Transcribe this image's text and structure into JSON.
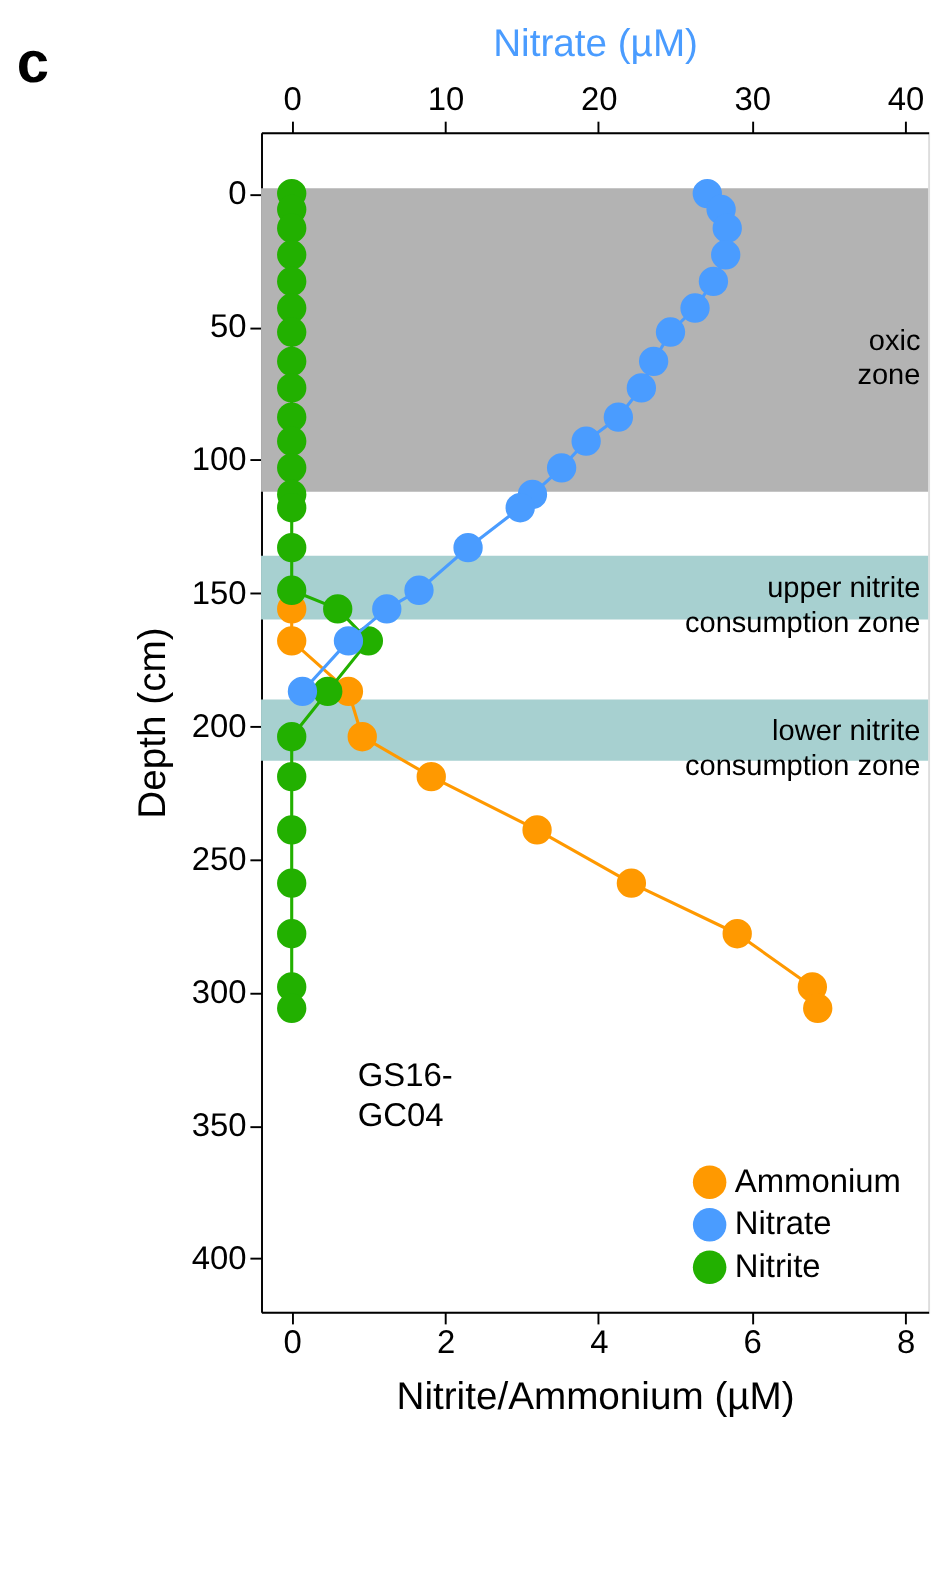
{
  "chart_data": {
    "type": "line",
    "title": "c",
    "xlabel": "Nitrite/Ammonium (µM)",
    "x2label": "Nitrate (µM)",
    "ylabel": "Depth (cm)",
    "xlim": [
      -0.4,
      8.3
    ],
    "xticks": [
      0,
      2,
      4,
      6,
      8
    ],
    "x2lim": [
      -2,
      41.5
    ],
    "x2ticks": [
      0,
      10,
      20,
      30,
      40
    ],
    "ylim": [
      420,
      -23
    ],
    "yticks": [
      0,
      50,
      100,
      150,
      200,
      250,
      300,
      350,
      400
    ],
    "grid": false,
    "legend": "bottom right",
    "marker": "circle",
    "line_style": "solid",
    "series": [
      {
        "name": "Ammonium",
        "color": "#ff9900",
        "x": [
          0,
          0,
          0.74,
          0.92,
          1.82,
          3.2,
          4.43,
          5.81,
          6.79,
          6.86
        ],
        "values": [
          156,
          168,
          187,
          204,
          219,
          239,
          259,
          278,
          298,
          306
        ]
      },
      {
        "name": "Nitrate",
        "color": "#4a9cff",
        "axis": "x2",
        "x": [
          27.1,
          28.0,
          28.4,
          28.3,
          27.5,
          26.3,
          24.7,
          23.6,
          22.8,
          21.3,
          19.2,
          17.6,
          15.7,
          14.9,
          11.5,
          8.3,
          6.2,
          3.7,
          0.7
        ],
        "values": [
          0,
          6,
          13,
          23,
          33,
          43,
          52,
          63,
          73,
          84,
          93,
          103,
          113,
          118,
          133,
          149,
          156,
          168,
          187
        ]
      },
      {
        "name": "Nitrite",
        "color": "#22b000",
        "x": [
          0,
          0,
          0,
          0,
          0,
          0,
          0,
          0,
          0,
          0,
          0,
          0,
          0,
          0,
          0,
          0,
          0.6,
          1.0,
          0.47,
          0,
          0,
          0,
          0,
          0,
          0,
          0
        ],
        "values": [
          0,
          6,
          13,
          23,
          33,
          43,
          52,
          63,
          73,
          84,
          93,
          103,
          113,
          118,
          133,
          149,
          156,
          168,
          187,
          204,
          219,
          239,
          259,
          278,
          298,
          306
        ]
      }
    ],
    "bands": [
      {
        "axis": "y",
        "from": -2,
        "to": 112,
        "label": "oxic\nzone",
        "color": "#b3b3b3"
      },
      {
        "axis": "y",
        "from": 136,
        "to": 160,
        "label": "upper nitrite\nconsumption zone",
        "color": "#a7d0d0"
      },
      {
        "axis": "y",
        "from": 190,
        "to": 213,
        "label": "lower nitrite\nconsumption zone",
        "color": "#a7d0d0"
      }
    ],
    "annotations": [
      "GS16-\nGC04"
    ]
  }
}
